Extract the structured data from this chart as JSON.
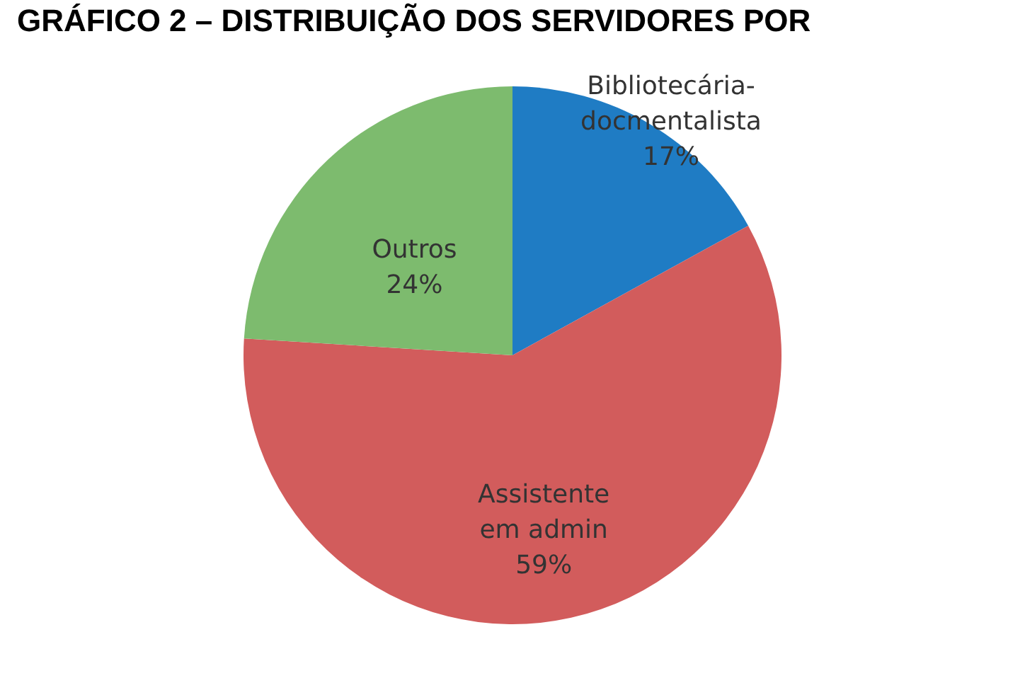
{
  "chart_data": {
    "type": "pie",
    "title": "GRÁFICO 2 – DISTRIBUIÇÃO DOS SERVIDORES POR",
    "categories": [
      "Bibliotecária-docmentalista",
      "Assistente em admin",
      "Outros"
    ],
    "values": [
      17,
      59,
      24
    ],
    "colors": [
      "#1f7cc4",
      "#d25c5c",
      "#7dbb6e"
    ],
    "value_labels": [
      "17%",
      "59%",
      "24%"
    ]
  }
}
